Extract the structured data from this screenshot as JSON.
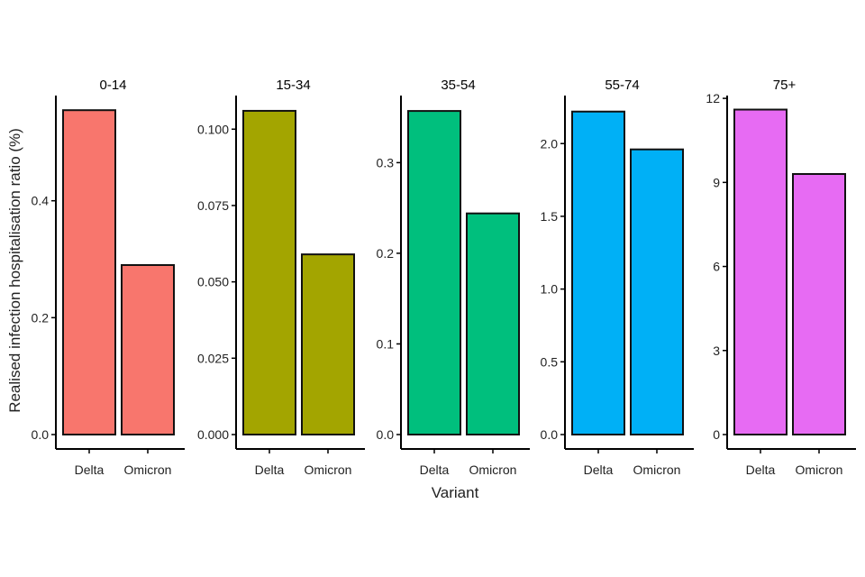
{
  "chart_data": {
    "type": "bar",
    "xlabel": "Variant",
    "ylabel": "Realised infection hospitalisation ratio (%)",
    "categories": [
      "Delta",
      "Omicron"
    ],
    "facets": [
      {
        "title": "0-14",
        "color": "#F8766D",
        "values": [
          0.555,
          0.29
        ],
        "ylim": [
          0,
          0.58
        ],
        "yticks": [
          {
            "v": 0.0,
            "label": "0.0"
          },
          {
            "v": 0.2,
            "label": "0.2"
          },
          {
            "v": 0.4,
            "label": "0.4"
          }
        ]
      },
      {
        "title": "15-34",
        "color": "#A3A500",
        "values": [
          0.106,
          0.059
        ],
        "ylim": [
          0,
          0.111
        ],
        "yticks": [
          {
            "v": 0.0,
            "label": "0.000"
          },
          {
            "v": 0.025,
            "label": "0.025"
          },
          {
            "v": 0.05,
            "label": "0.050"
          },
          {
            "v": 0.075,
            "label": "0.075"
          },
          {
            "v": 0.1,
            "label": "0.100"
          }
        ]
      },
      {
        "title": "35-54",
        "color": "#00BF7D",
        "values": [
          0.357,
          0.244
        ],
        "ylim": [
          0,
          0.374
        ],
        "yticks": [
          {
            "v": 0.0,
            "label": "0.0"
          },
          {
            "v": 0.1,
            "label": "0.1"
          },
          {
            "v": 0.2,
            "label": "0.2"
          },
          {
            "v": 0.3,
            "label": "0.3"
          }
        ]
      },
      {
        "title": "55-74",
        "color": "#00B0F6",
        "values": [
          2.22,
          1.96
        ],
        "ylim": [
          0,
          2.33
        ],
        "yticks": [
          {
            "v": 0.0,
            "label": "0.0"
          },
          {
            "v": 0.5,
            "label": "0.5"
          },
          {
            "v": 1.0,
            "label": "1.0"
          },
          {
            "v": 1.5,
            "label": "1.5"
          },
          {
            "v": 2.0,
            "label": "2.0"
          }
        ]
      },
      {
        "title": "75+",
        "color": "#E76BF3",
        "values": [
          11.6,
          9.3
        ],
        "ylim": [
          0,
          12.1
        ],
        "yticks": [
          {
            "v": 0,
            "label": "0"
          },
          {
            "v": 3,
            "label": "3"
          },
          {
            "v": 6,
            "label": "6"
          },
          {
            "v": 9,
            "label": "9"
          },
          {
            "v": 12,
            "label": "12"
          }
        ]
      }
    ],
    "grid": false,
    "legend": "none"
  }
}
